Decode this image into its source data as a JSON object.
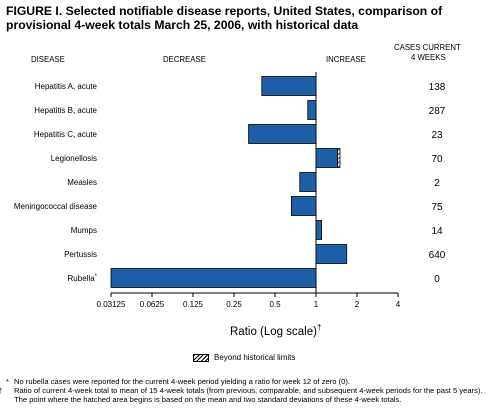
{
  "title": "FIGURE I. Selected notifiable disease reports, United States, comparison of provisional 4-week totals March 25, 2006, with historical data",
  "headers": {
    "disease": "DISEASE",
    "decrease": "DECREASE",
    "increase": "INCREASE",
    "cases_line1": "CASES CURRENT",
    "cases_line2": "4 WEEKS"
  },
  "legend": {
    "label": "Beyond historical limits"
  },
  "footnotes": [
    {
      "symbol": "*",
      "text": "No rubella cases were reported for the current 4-week period yielding a ratio for week 12 of zero (0)."
    },
    {
      "symbol": "†",
      "text": "Ratio of current 4-week total to mean of 15 4-week totals (from previous, comparable, and subsequent 4-week periods for the past 5 years). The point where the hatched area begins is based on the mean and two standard deviations of these 4-week totals."
    }
  ],
  "colors": {
    "bar": "#1f5fa8",
    "bar_outline": "#000000",
    "hatch": "#000000"
  },
  "chart_data": {
    "type": "bar",
    "orientation": "horizontal",
    "xscale": "log2",
    "xlabel": "Ratio (Log scale)",
    "xlabel_marker": "†",
    "xlim": [
      0.03125,
      4
    ],
    "reference_line": 1,
    "xticks": [
      "0.03125",
      "0.0625",
      "0.125",
      "0.25",
      "0.5",
      "1",
      "2",
      "4"
    ],
    "xtick_values": [
      0.03125,
      0.0625,
      0.125,
      0.25,
      0.5,
      1,
      2,
      4
    ],
    "categories": [
      "Hepatitis A, acute",
      "Hepatitis B, acute",
      "Hepatitis C, acute",
      "Legionellosis",
      "Measles",
      "Meningococcal disease",
      "Mumps",
      "Pertussis",
      "Rubella"
    ],
    "category_markers": [
      "",
      "",
      "",
      "",
      "",
      "",
      "",
      "",
      "*"
    ],
    "ratios": [
      0.4,
      0.87,
      0.32,
      1.5,
      0.76,
      0.66,
      1.1,
      1.68,
      0.03125
    ],
    "beyond_historical_limits_from": [
      null,
      null,
      null,
      1.44,
      null,
      null,
      null,
      null,
      null
    ],
    "cases_current_4_weeks": [
      "138",
      "287",
      "23",
      "70",
      "2",
      "75",
      "14",
      "640",
      "0"
    ]
  }
}
